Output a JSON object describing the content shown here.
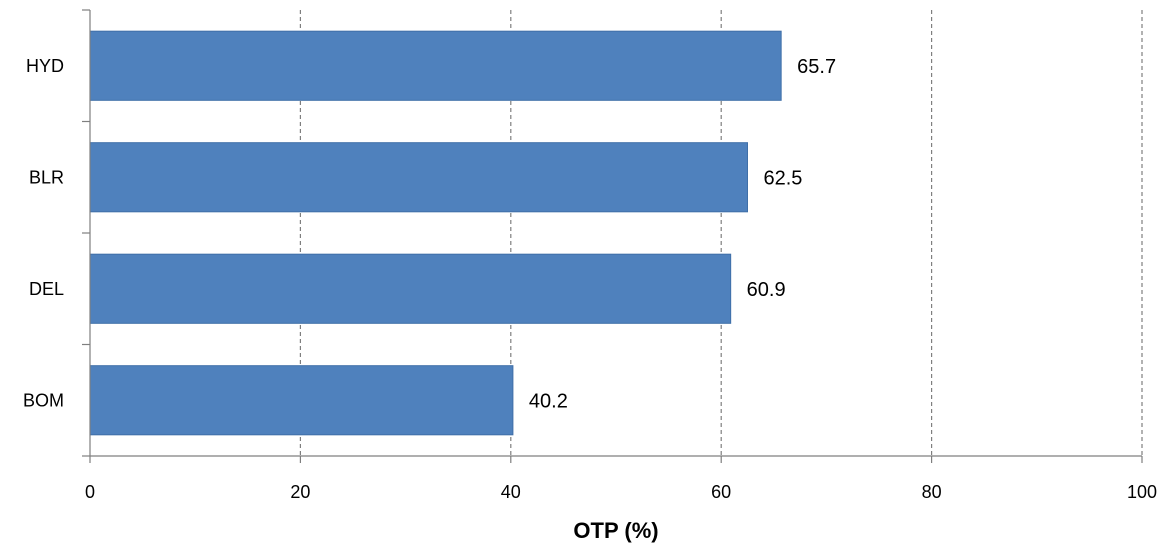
{
  "chart_data": {
    "type": "bar",
    "orientation": "horizontal",
    "categories": [
      "BOM",
      "DEL",
      "BLR",
      "HYD"
    ],
    "values": [
      40.2,
      60.9,
      62.5,
      65.7
    ],
    "data_labels": [
      "40.2",
      "60.9",
      "62.5",
      "65.7"
    ],
    "title": "",
    "xlabel": "OTP (%)",
    "ylabel": "",
    "xlim": [
      0,
      100
    ],
    "xticks": [
      0,
      20,
      40,
      60,
      80,
      100
    ],
    "xtick_labels": [
      "0",
      "20",
      "40",
      "60",
      "80",
      "100"
    ],
    "grid": "vertical dashed",
    "legend": "none",
    "bar_color": "#4f81bd",
    "grid_color": "#7f7f7f",
    "axis_color": "#7f7f7f"
  }
}
